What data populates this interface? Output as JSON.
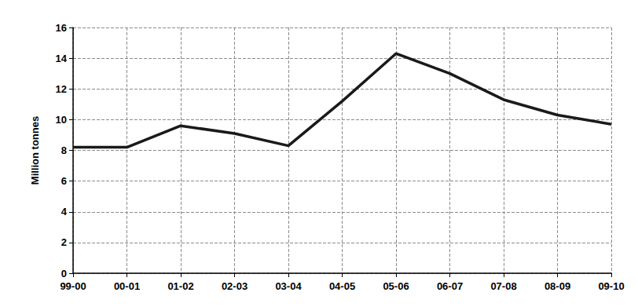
{
  "chart_data": {
    "type": "line",
    "y_label": "Million tonnes",
    "categories": [
      "99-00",
      "00-01",
      "01-02",
      "02-03",
      "03-04",
      "04-05",
      "05-06",
      "06-07",
      "07-08",
      "08-09",
      "09-10"
    ],
    "values": [
      8.2,
      8.2,
      9.6,
      9.1,
      8.3,
      11.2,
      14.3,
      13.0,
      11.3,
      10.3,
      9.7
    ],
    "color": "#1a1a1a",
    "line_style": "solid",
    "ylim": [
      0,
      16
    ],
    "yticks": [
      0,
      2,
      4,
      6,
      8,
      10,
      12,
      14,
      16
    ],
    "grid": true
  }
}
